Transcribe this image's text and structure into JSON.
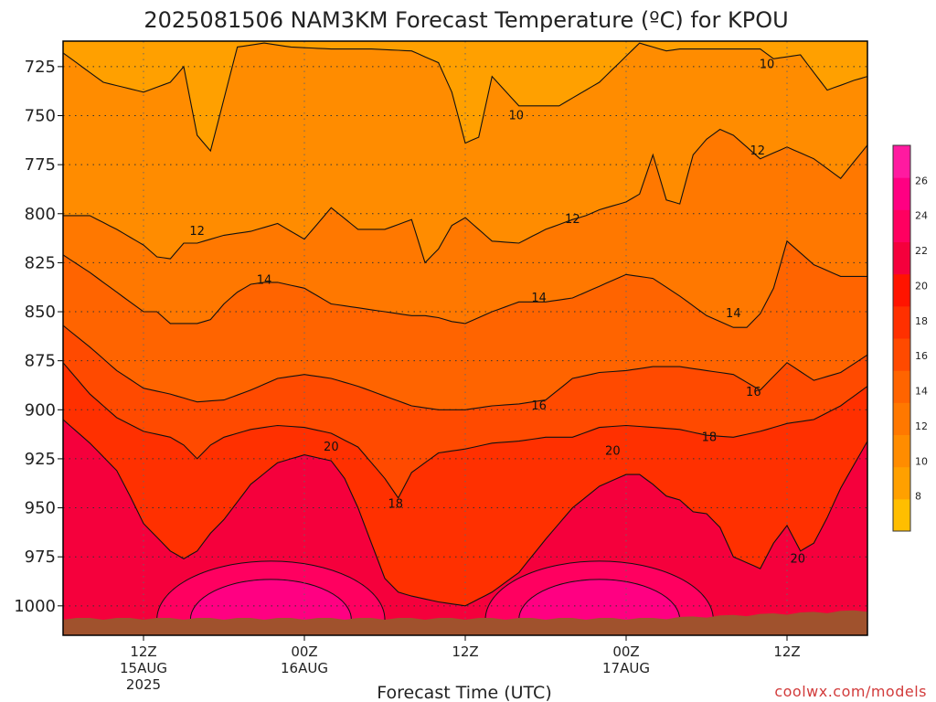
{
  "title": "2025081506 NAM3KM Forecast Temperature (ºC) for KPOU",
  "credit": "coolwx.com/models",
  "chart_data": {
    "type": "heatmap",
    "title": "2025081506 NAM3KM Forecast Temperature (ºC) for KPOU",
    "xlabel": "Forecast Time (UTC)",
    "ylabel": "",
    "x_ticks": [
      {
        "hour": 6,
        "line1": "12Z",
        "line2": "15AUG",
        "line3": "2025"
      },
      {
        "hour": 18,
        "line1": "00Z",
        "line2": "16AUG",
        "line3": ""
      },
      {
        "hour": 30,
        "line1": "12Z",
        "line2": "",
        "line3": ""
      },
      {
        "hour": 42,
        "line1": "00Z",
        "line2": "17AUG",
        "line3": ""
      },
      {
        "hour": 54,
        "line1": "12Z",
        "line2": "",
        "line3": ""
      }
    ],
    "xlim_hours": [
      0,
      60
    ],
    "y_ticks": [
      "725",
      "750",
      "775",
      "800",
      "825",
      "850",
      "875",
      "900",
      "925",
      "950",
      "975",
      "1000"
    ],
    "ylim_hpa": [
      712,
      1015
    ],
    "y_reversed": true,
    "grid": true,
    "colorbar": {
      "ticks": [
        "26",
        "24",
        "22",
        "20",
        "18",
        "16",
        "14",
        "12",
        "10",
        "8"
      ],
      "range": [
        6,
        28
      ],
      "colors": [
        "#ffbe00",
        "#ffa000",
        "#ff8c00",
        "#ff7800",
        "#ff6400",
        "#ff4a00",
        "#ff3000",
        "#ff1400",
        "#f5003c",
        "#ff0060",
        "#ff0082",
        "#ff1aa0"
      ]
    },
    "contour_levels": [
      10,
      12,
      14,
      16,
      18,
      20
    ],
    "contour_labels": [
      {
        "text": "10",
        "hour": 52.5,
        "p": 724
      },
      {
        "text": "10",
        "hour": 33.8,
        "p": 750
      },
      {
        "text": "12",
        "hour": 10.0,
        "p": 809
      },
      {
        "text": "12",
        "hour": 38.0,
        "p": 803
      },
      {
        "text": "12",
        "hour": 51.8,
        "p": 768
      },
      {
        "text": "14",
        "hour": 15.0,
        "p": 834
      },
      {
        "text": "14",
        "hour": 35.5,
        "p": 843
      },
      {
        "text": "14",
        "hour": 50.0,
        "p": 851
      },
      {
        "text": "16",
        "hour": 35.5,
        "p": 898
      },
      {
        "text": "16",
        "hour": 51.5,
        "p": 891
      },
      {
        "text": "20",
        "hour": 20.0,
        "p": 919
      },
      {
        "text": "20",
        "hour": 41.0,
        "p": 921
      },
      {
        "text": "18",
        "hour": 24.8,
        "p": 948
      },
      {
        "text": "18",
        "hour": 48.2,
        "p": 914
      },
      {
        "text": "20",
        "hour": 54.8,
        "p": 976
      }
    ],
    "series": [
      {
        "level": 10,
        "hour": [
          0,
          3,
          6,
          8,
          9,
          10,
          11,
          13,
          15,
          17,
          20,
          23,
          26,
          28,
          29,
          30,
          31,
          32,
          34,
          37,
          40,
          43,
          45,
          46,
          48,
          50,
          52,
          53,
          55,
          57,
          59,
          60
        ],
        "p": [
          718,
          733,
          738,
          733,
          725,
          760,
          768,
          715,
          713,
          715,
          716,
          716,
          717,
          723,
          738,
          764,
          761,
          730,
          745,
          745,
          733,
          713,
          717,
          716,
          716,
          716,
          716,
          721,
          719,
          737,
          732,
          730
        ]
      },
      {
        "level": 12,
        "hour": [
          0,
          2,
          4,
          5,
          6,
          7,
          8,
          9,
          10,
          11,
          12,
          14,
          16,
          18,
          20,
          22,
          24,
          26,
          27,
          28,
          29,
          30,
          32,
          34,
          36,
          38,
          39,
          40,
          42,
          43,
          44,
          45,
          46,
          47,
          48,
          49,
          50,
          52,
          54,
          56,
          58,
          60
        ],
        "p": [
          801,
          801,
          808,
          812,
          816,
          822,
          823,
          815,
          815,
          813,
          811,
          809,
          805,
          813,
          797,
          808,
          808,
          803,
          825,
          818,
          806,
          802,
          814,
          815,
          808,
          803,
          801,
          798,
          794,
          790,
          770,
          793,
          795,
          770,
          762,
          757,
          760,
          772,
          766,
          772,
          782,
          765
        ]
      },
      {
        "level": 14,
        "hour": [
          0,
          2,
          4,
          6,
          7,
          8,
          9,
          10,
          11,
          12,
          13,
          14,
          15,
          16,
          18,
          20,
          22,
          24,
          26,
          27,
          28,
          29,
          30,
          32,
          34,
          36,
          38,
          40,
          42,
          44,
          46,
          48,
          50,
          51,
          52,
          53,
          54,
          56,
          58,
          60
        ],
        "p": [
          821,
          830,
          840,
          850,
          850,
          856,
          856,
          856,
          854,
          846,
          840,
          836,
          835,
          835,
          838,
          846,
          848,
          850,
          852,
          852,
          853,
          855,
          856,
          850,
          845,
          845,
          843,
          837,
          831,
          833,
          842,
          852,
          858,
          858,
          851,
          838,
          814,
          826,
          832,
          832
        ]
      },
      {
        "level": 16,
        "hour": [
          0,
          2,
          4,
          6,
          8,
          10,
          12,
          14,
          16,
          18,
          20,
          22,
          24,
          26,
          28,
          30,
          32,
          34,
          36,
          38,
          40,
          42,
          44,
          46,
          48,
          50,
          52,
          54,
          56,
          58,
          60
        ],
        "p": [
          857,
          868,
          880,
          889,
          892,
          896,
          895,
          890,
          884,
          882,
          884,
          888,
          893,
          898,
          900,
          900,
          898,
          897,
          895,
          884,
          881,
          880,
          878,
          878,
          880,
          882,
          890,
          876,
          885,
          881,
          872
        ]
      },
      {
        "level": 18,
        "hour": [
          0,
          2,
          4,
          6,
          8,
          9,
          10,
          11,
          12,
          14,
          16,
          18,
          20,
          22,
          24,
          25,
          26,
          28,
          30,
          32,
          34,
          36,
          38,
          40,
          42,
          44,
          46,
          48,
          50,
          52,
          54,
          56,
          58,
          60
        ],
        "p": [
          876,
          892,
          904,
          911,
          914,
          918,
          925,
          918,
          914,
          910,
          908,
          909,
          912,
          919,
          935,
          945,
          932,
          922,
          920,
          917,
          916,
          914,
          914,
          909,
          908,
          909,
          910,
          913,
          914,
          911,
          907,
          905,
          898,
          888
        ]
      },
      {
        "level": 20,
        "hour": [
          0,
          2,
          4,
          5,
          6,
          7,
          8,
          9,
          10,
          11,
          12,
          14,
          16,
          18,
          20,
          21,
          22,
          23,
          24,
          25,
          26,
          28,
          30,
          32,
          34,
          36,
          38,
          40,
          42,
          43,
          44,
          45,
          46,
          47,
          48,
          49,
          50,
          52,
          53,
          54,
          55,
          56,
          57,
          58,
          60
        ],
        "p": [
          905,
          917,
          931,
          944,
          958,
          965,
          972,
          976,
          972,
          963,
          956,
          938,
          927,
          923,
          926,
          935,
          950,
          968,
          986,
          993,
          995,
          998,
          1000,
          993,
          983,
          966,
          950,
          939,
          933,
          933,
          938,
          944,
          946,
          952,
          953,
          960,
          975,
          981,
          968,
          959,
          972,
          968,
          955,
          940,
          916
        ]
      }
    ]
  }
}
